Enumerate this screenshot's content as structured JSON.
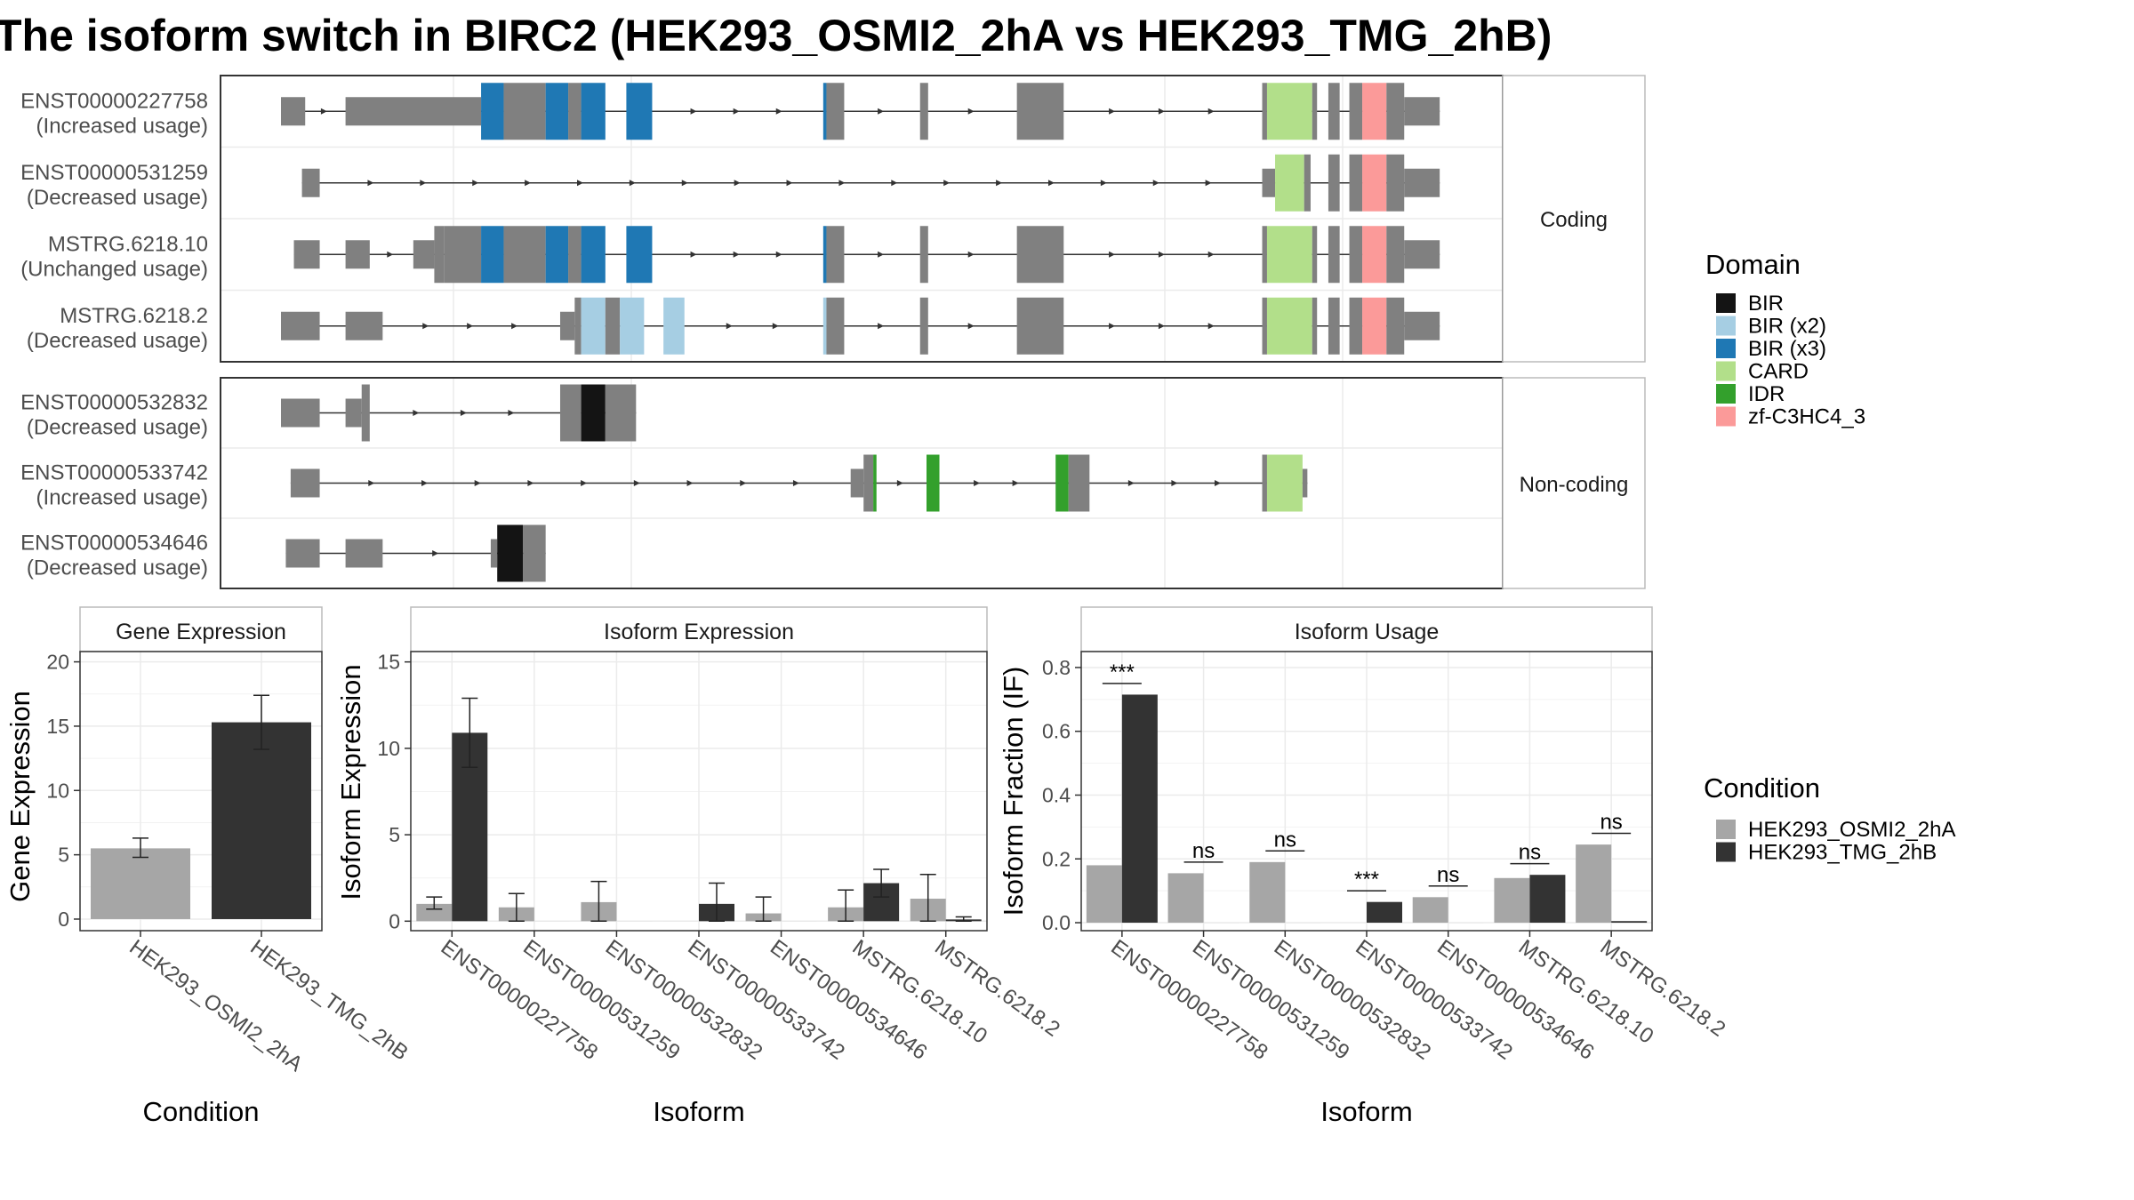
{
  "figure": {
    "title": "The isoform switch in BIRC2 (HEK293_OSMI2_2hA vs HEK293_TMG_2hB)"
  },
  "legends": {
    "domain": {
      "title": "Domain",
      "items": [
        {
          "label": "BIR",
          "color": "#141414"
        },
        {
          "label": "BIR (x2)",
          "color": "#a6cee3"
        },
        {
          "label": "BIR (x3)",
          "color": "#1f78b4"
        },
        {
          "label": "CARD",
          "color": "#b2df8a"
        },
        {
          "label": "IDR",
          "color": "#33a02c"
        },
        {
          "label": "zf-C3HC4_3",
          "color": "#fb9a99"
        }
      ]
    },
    "condition": {
      "title": "Condition",
      "items": [
        {
          "label": "HEK293_OSMI2_2hA",
          "color": "#a6a6a6"
        },
        {
          "label": "HEK293_TMG_2hB",
          "color": "#333333"
        }
      ]
    }
  },
  "chart_data": [
    {
      "type": "other",
      "panel": "isoform structures",
      "exon_color": "#808080",
      "groups": [
        {
          "label": "Coding",
          "isoforms": [
            {
              "id": "ENST00000227758",
              "usage": "(Increased usage)",
              "exons": [
                [
                  0.0,
                  1.5,
                  "s"
                ],
                [
                  4.0,
                  12.4,
                  "s"
                ],
                [
                  12.4,
                  13.8,
                  "BIR (x3)"
                ],
                [
                  13.8,
                  16.4,
                  "s"
                ],
                [
                  16.4,
                  17.8,
                  "BIR (x3)"
                ],
                [
                  17.8,
                  18.6,
                  "s"
                ],
                [
                  18.6,
                  20.1,
                  "BIR (x3)"
                ],
                [
                  21.4,
                  23.0,
                  "BIR (x3)"
                ],
                [
                  33.6,
                  33.8,
                  "BIR (x3)"
                ],
                [
                  33.8,
                  34.9,
                  "s"
                ],
                [
                  39.6,
                  40.1,
                  "s"
                ],
                [
                  45.6,
                  48.5,
                  "s"
                ],
                [
                  60.8,
                  61.1,
                  "s"
                ],
                [
                  61.1,
                  63.9,
                  "CARD"
                ],
                [
                  63.9,
                  64.2,
                  "s"
                ],
                [
                  64.9,
                  65.6,
                  "s"
                ],
                [
                  66.2,
                  67.0,
                  "s"
                ],
                [
                  67.0,
                  68.5,
                  "zf-C3HC4_3"
                ],
                [
                  68.5,
                  69.6,
                  "s"
                ],
                [
                  69.6,
                  71.8,
                  "s"
                ]
              ],
              "utr": [
                [
                  0.0,
                  1.5
                ],
                [
                  4.0,
                  12.4
                ],
                [
                  69.6,
                  71.8
                ]
              ]
            },
            {
              "id": "ENST00000531259",
              "usage": "(Decreased usage)",
              "exons": [
                [
                  1.3,
                  2.4,
                  "s"
                ],
                [
                  60.8,
                  61.6,
                  "s"
                ],
                [
                  61.6,
                  63.4,
                  "CARD"
                ],
                [
                  63.4,
                  63.8,
                  "s"
                ],
                [
                  64.9,
                  65.6,
                  "s"
                ],
                [
                  66.2,
                  67.0,
                  "s"
                ],
                [
                  67.0,
                  68.5,
                  "zf-C3HC4_3"
                ],
                [
                  68.5,
                  69.6,
                  "s"
                ],
                [
                  69.6,
                  71.8,
                  "s"
                ]
              ],
              "utr": [
                [
                  1.3,
                  2.4
                ],
                [
                  60.8,
                  61.6
                ],
                [
                  69.6,
                  71.8
                ]
              ]
            },
            {
              "id": "MSTRG.6218.10",
              "usage": "(Unchanged usage)",
              "exons": [
                [
                  0.8,
                  2.4,
                  "s"
                ],
                [
                  4.0,
                  5.5,
                  "s"
                ],
                [
                  8.2,
                  9.5,
                  "s"
                ],
                [
                  9.5,
                  10.1,
                  "s"
                ],
                [
                  10.1,
                  12.4,
                  "s"
                ],
                [
                  12.4,
                  13.8,
                  "BIR (x3)"
                ],
                [
                  13.8,
                  16.4,
                  "s"
                ],
                [
                  16.4,
                  17.8,
                  "BIR (x3)"
                ],
                [
                  17.8,
                  18.6,
                  "s"
                ],
                [
                  18.6,
                  20.1,
                  "BIR (x3)"
                ],
                [
                  21.4,
                  23.0,
                  "BIR (x3)"
                ],
                [
                  33.6,
                  33.8,
                  "BIR (x3)"
                ],
                [
                  33.8,
                  34.9,
                  "s"
                ],
                [
                  39.6,
                  40.1,
                  "s"
                ],
                [
                  45.6,
                  48.5,
                  "s"
                ],
                [
                  60.8,
                  61.1,
                  "s"
                ],
                [
                  61.1,
                  63.9,
                  "CARD"
                ],
                [
                  63.9,
                  64.2,
                  "s"
                ],
                [
                  64.9,
                  65.6,
                  "s"
                ],
                [
                  66.2,
                  67.0,
                  "s"
                ],
                [
                  67.0,
                  68.5,
                  "zf-C3HC4_3"
                ],
                [
                  68.5,
                  69.6,
                  "s"
                ],
                [
                  69.6,
                  71.8,
                  "s"
                ]
              ],
              "utr": [
                [
                  0.8,
                  2.4
                ],
                [
                  4.0,
                  5.5
                ],
                [
                  8.2,
                  9.5
                ],
                [
                  69.6,
                  71.8
                ]
              ]
            },
            {
              "id": "MSTRG.6218.2",
              "usage": "(Decreased usage)",
              "exons": [
                [
                  0.0,
                  2.4,
                  "s"
                ],
                [
                  4.0,
                  6.3,
                  "s"
                ],
                [
                  17.3,
                  18.2,
                  "s"
                ],
                [
                  18.2,
                  18.6,
                  "s"
                ],
                [
                  18.6,
                  20.1,
                  "BIR (x2)"
                ],
                [
                  20.1,
                  21.0,
                  "s"
                ],
                [
                  21.0,
                  22.5,
                  "BIR (x2)"
                ],
                [
                  23.7,
                  25.0,
                  "BIR (x2)"
                ],
                [
                  33.6,
                  33.8,
                  "BIR (x2)"
                ],
                [
                  33.8,
                  34.9,
                  "s"
                ],
                [
                  39.6,
                  40.1,
                  "s"
                ],
                [
                  45.6,
                  48.5,
                  "s"
                ],
                [
                  60.8,
                  61.1,
                  "s"
                ],
                [
                  61.1,
                  63.9,
                  "CARD"
                ],
                [
                  63.9,
                  64.2,
                  "s"
                ],
                [
                  64.9,
                  65.6,
                  "s"
                ],
                [
                  66.2,
                  67.0,
                  "s"
                ],
                [
                  67.0,
                  68.5,
                  "zf-C3HC4_3"
                ],
                [
                  68.5,
                  69.6,
                  "s"
                ],
                [
                  69.6,
                  71.8,
                  "s"
                ]
              ],
              "utr": [
                [
                  0.0,
                  2.4
                ],
                [
                  4.0,
                  6.3
                ],
                [
                  17.3,
                  18.2
                ],
                [
                  69.6,
                  71.8
                ]
              ]
            }
          ]
        },
        {
          "label": "Non-coding",
          "isoforms": [
            {
              "id": "ENST00000532832",
              "usage": "(Decreased usage)",
              "exons": [
                [
                  0.0,
                  2.4,
                  "s"
                ],
                [
                  4.0,
                  5.0,
                  "s"
                ],
                [
                  5.0,
                  5.5,
                  "s"
                ],
                [
                  17.3,
                  18.6,
                  "s"
                ],
                [
                  18.6,
                  20.1,
                  "BIR"
                ],
                [
                  20.1,
                  22.0,
                  "s"
                ]
              ],
              "utr": [
                [
                  0.0,
                  2.4
                ],
                [
                  4.0,
                  5.0
                ]
              ]
            },
            {
              "id": "ENST00000533742",
              "usage": "(Increased usage)",
              "exons": [
                [
                  0.6,
                  2.4,
                  "s"
                ],
                [
                  35.3,
                  36.1,
                  "s"
                ],
                [
                  36.1,
                  36.7,
                  "s"
                ],
                [
                  36.7,
                  36.9,
                  "IDR"
                ],
                [
                  40.0,
                  40.8,
                  "IDR"
                ],
                [
                  48.0,
                  48.8,
                  "IDR"
                ],
                [
                  48.8,
                  50.1,
                  "s"
                ],
                [
                  60.8,
                  61.1,
                  "s"
                ],
                [
                  61.1,
                  63.3,
                  "CARD"
                ],
                [
                  63.3,
                  63.6,
                  "s"
                ]
              ],
              "utr": [
                [
                  0.6,
                  2.4
                ],
                [
                  35.3,
                  36.1
                ],
                [
                  63.3,
                  63.6
                ]
              ]
            },
            {
              "id": "ENST00000534646",
              "usage": "(Decreased usage)",
              "exons": [
                [
                  0.3,
                  2.4,
                  "s"
                ],
                [
                  4.0,
                  6.3,
                  "s"
                ],
                [
                  13.0,
                  13.4,
                  "s"
                ],
                [
                  13.4,
                  15.0,
                  "BIR"
                ],
                [
                  15.0,
                  16.4,
                  "s"
                ]
              ],
              "utr": [
                [
                  0.3,
                  2.4
                ],
                [
                  4.0,
                  6.3
                ],
                [
                  13.0,
                  13.4
                ]
              ]
            }
          ]
        }
      ]
    },
    {
      "type": "bar",
      "title": "Gene Expression",
      "xlabel": "Condition",
      "ylabel": "Gene Expression",
      "ylim": [
        -0.9,
        20.8
      ],
      "yticks": [
        0,
        5,
        10,
        15,
        20
      ],
      "categories": [
        "HEK293_OSMI2_2hA",
        "HEK293_TMG_2hB"
      ],
      "values": [
        5.5,
        15.3
      ],
      "errors": [
        [
          4.8,
          6.3
        ],
        [
          13.2,
          17.4
        ]
      ]
    },
    {
      "type": "bar",
      "title": "Isoform Expression",
      "xlabel": "Isoform",
      "ylabel": "Isoform Expression",
      "ylim": [
        -0.55,
        15.6
      ],
      "yticks": [
        0,
        5,
        10,
        15
      ],
      "categories": [
        "ENST00000227758",
        "ENST00000531259",
        "ENST00000532832",
        "ENST00000533742",
        "ENST00000534646",
        "MSTRG.6218.10",
        "MSTRG.6218.2"
      ],
      "series": [
        {
          "name": "HEK293_OSMI2_2hA",
          "values": [
            1.0,
            0.8,
            1.1,
            0.0,
            0.45,
            0.8,
            1.3
          ],
          "errors": [
            [
              0.7,
              1.4
            ],
            [
              0.0,
              1.6
            ],
            [
              0.0,
              2.3
            ],
            [
              0.0,
              0.0
            ],
            [
              0.0,
              1.4
            ],
            [
              0.0,
              1.8
            ],
            [
              0.0,
              2.7
            ]
          ]
        },
        {
          "name": "HEK293_TMG_2hB",
          "values": [
            10.9,
            0.0,
            0.0,
            1.0,
            0.0,
            2.2,
            0.1
          ],
          "errors": [
            [
              8.9,
              12.9
            ],
            [
              0.0,
              0.0
            ],
            [
              0.0,
              0.0
            ],
            [
              0.0,
              2.2
            ],
            [
              0.0,
              0.0
            ],
            [
              1.4,
              3.0
            ],
            [
              0.0,
              0.25
            ]
          ]
        }
      ]
    },
    {
      "type": "bar",
      "title": "Isoform Usage",
      "xlabel": "Isoform",
      "ylabel": "Isoform Fraction (IF)",
      "ylim": [
        -0.025,
        0.85
      ],
      "yticks": [
        0.0,
        0.2,
        0.4,
        0.6,
        0.8
      ],
      "categories": [
        "ENST00000227758",
        "ENST00000531259",
        "ENST00000532832",
        "ENST00000533742",
        "ENST00000534646",
        "MSTRG.6218.10",
        "MSTRG.6218.2"
      ],
      "series": [
        {
          "name": "HEK293_OSMI2_2hA",
          "values": [
            0.18,
            0.155,
            0.19,
            0.0,
            0.08,
            0.14,
            0.245
          ]
        },
        {
          "name": "HEK293_TMG_2hB",
          "values": [
            0.715,
            0.0,
            0.0,
            0.065,
            0.0,
            0.15,
            0.005
          ]
        }
      ],
      "annotations": [
        {
          "category": "ENST00000227758",
          "label": "***",
          "y": 0.75
        },
        {
          "category": "ENST00000531259",
          "label": "ns",
          "y": 0.19
        },
        {
          "category": "ENST00000532832",
          "label": "ns",
          "y": 0.225
        },
        {
          "category": "ENST00000533742",
          "label": "***",
          "y": 0.1
        },
        {
          "category": "ENST00000534646",
          "label": "ns",
          "y": 0.115
        },
        {
          "category": "MSTRG.6218.10",
          "label": "ns",
          "y": 0.185
        },
        {
          "category": "MSTRG.6218.2",
          "label": "ns",
          "y": 0.28
        }
      ]
    }
  ]
}
